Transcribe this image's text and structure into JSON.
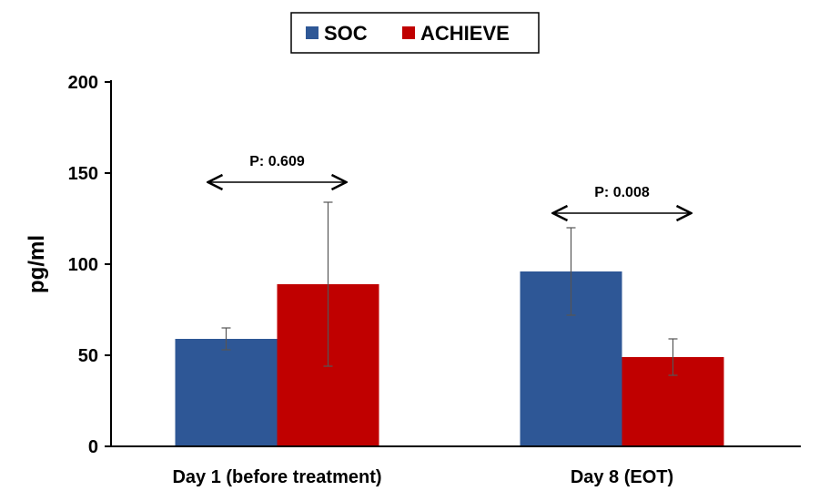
{
  "chart_data": {
    "type": "bar",
    "categories": [
      "Day 1 (before treatment)",
      "Day 8 (EOT)"
    ],
    "series": [
      {
        "name": "SOC",
        "color": "#2e5796",
        "values": [
          59,
          96
        ],
        "error": [
          6,
          24
        ]
      },
      {
        "name": "ACHIEVE",
        "color": "#c00000",
        "values": [
          89,
          49
        ],
        "error": [
          45,
          10
        ]
      }
    ],
    "ylabel": "pg/ml",
    "ylim": [
      0,
      200
    ],
    "yticks": [
      0,
      50,
      100,
      150,
      200
    ],
    "grid": false,
    "legend": {
      "position": "top-center"
    },
    "annotations": [
      {
        "category": "Day 1 (before treatment)",
        "text": "P: 0.609",
        "y": 145
      },
      {
        "category": "Day 8 (EOT)",
        "text": "P: 0.008",
        "y": 128
      }
    ]
  }
}
